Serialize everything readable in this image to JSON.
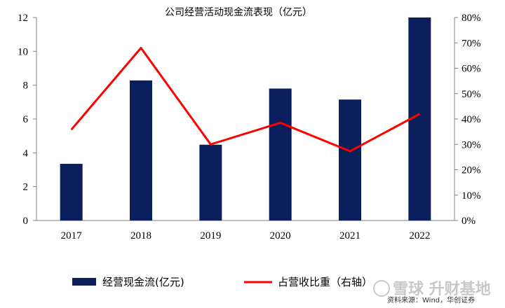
{
  "chart_data": {
    "type": "bar",
    "title": "公司经营活动现金流表现（亿元）",
    "categories": [
      "2017",
      "2018",
      "2019",
      "2020",
      "2021",
      "2022"
    ],
    "series": [
      {
        "name": "经营现金流(亿元)",
        "type": "bar",
        "axis": "left",
        "color": "#0b1f5c",
        "values": [
          3.35,
          8.28,
          4.48,
          7.8,
          7.15,
          12.0
        ]
      },
      {
        "name": "占营收比重（右轴）",
        "type": "line",
        "axis": "right",
        "color": "#ff0000",
        "values": [
          35.8,
          68.0,
          30.0,
          38.5,
          27.3,
          42.0
        ]
      }
    ],
    "y_left": {
      "min": 0,
      "max": 12,
      "ticks": [
        "0",
        "2",
        "4",
        "6",
        "8",
        "10",
        "12"
      ]
    },
    "y_right": {
      "min": 0,
      "max": 80,
      "ticks": [
        "0%",
        "10%",
        "20%",
        "30%",
        "40%",
        "50%",
        "60%",
        "70%",
        "80%"
      ]
    },
    "grid": false,
    "legend_position": "bottom"
  },
  "watermark": {
    "text": "雪球  升财基地",
    "source": "资料来源：Wind，华创证券"
  }
}
